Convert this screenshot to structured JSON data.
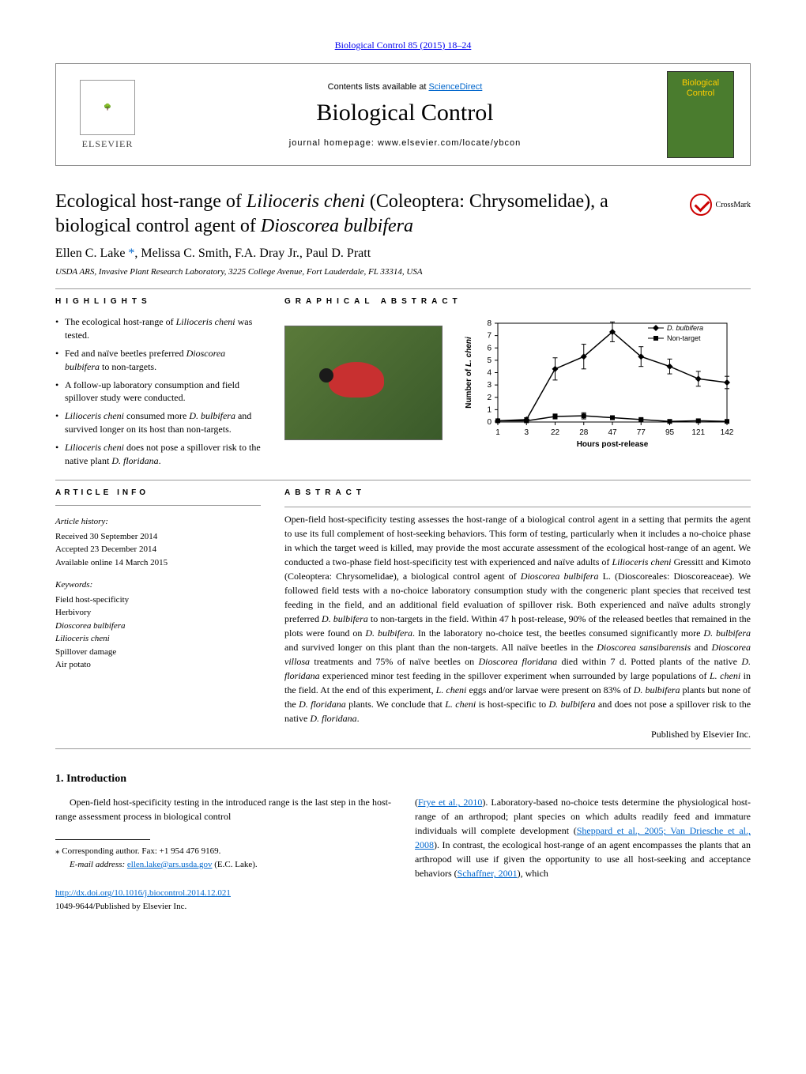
{
  "journal_ref": "Biological Control 85 (2015) 18–24",
  "header": {
    "contents_prefix": "Contents lists available at ",
    "contents_link": "ScienceDirect",
    "journal_name": "Biological Control",
    "homepage_prefix": "journal homepage: ",
    "homepage_url": "www.elsevier.com/locate/ybcon",
    "publisher": "ELSEVIER",
    "cover_line1": "Biological",
    "cover_line2": "Control"
  },
  "title_html": "Ecological host-range of <em>Lilioceris cheni</em> (Coleoptera: Chrysomelidae), a biological control agent of <em>Dioscorea bulbifera</em>",
  "crossmark": "CrossMark",
  "authors_html": "Ellen C. Lake <a href=\"#\">*</a>, Melissa C. Smith, F.A. Dray Jr., Paul D. Pratt",
  "affiliation": "USDA ARS, Invasive Plant Research Laboratory, 3225 College Avenue, Fort Lauderdale, FL 33314, USA",
  "highlights": {
    "label": "HIGHLIGHTS",
    "items": [
      "The ecological host-range of <em>Lilioceris cheni</em> was tested.",
      "Fed and naïve beetles preferred <em>Dioscorea bulbifera</em> to non-targets.",
      "A follow-up laboratory consumption and field spillover study were conducted.",
      "<em>Lilioceris cheni</em> consumed more <em>D. bulbifera</em> and survived longer on its host than non-targets.",
      "<em>Lilioceris cheni</em> does not pose a spillover risk to the native plant <em>D. floridana</em>."
    ]
  },
  "graphical_abstract": {
    "label": "GRAPHICAL ABSTRACT",
    "chart": {
      "type": "line",
      "x_categories": [
        "1",
        "3",
        "22",
        "28",
        "47",
        "77",
        "95",
        "121",
        "142"
      ],
      "ylabel": "Number of L. cheni",
      "xlabel": "Hours post-release",
      "ylim": [
        0,
        8
      ],
      "ytick_step": 1,
      "series": [
        {
          "name": "D. bulbifera",
          "color": "#000000",
          "marker": "diamond",
          "values": [
            0.1,
            0.2,
            4.3,
            5.3,
            7.3,
            5.3,
            4.5,
            3.5,
            3.2
          ]
        },
        {
          "name": "Non-target",
          "color": "#000000",
          "marker": "square",
          "values": [
            0.1,
            0.1,
            0.45,
            0.5,
            0.35,
            0.2,
            0.05,
            0.1,
            0.05
          ]
        }
      ],
      "error_bars": [
        [
          0.1,
          0.15,
          0.9,
          1.0,
          0.8,
          0.8,
          0.6,
          0.6,
          0.5
        ],
        [
          0.05,
          0.05,
          0.2,
          0.25,
          0.15,
          0.1,
          0.05,
          0.05,
          0.05
        ]
      ],
      "background_color": "#ffffff",
      "axis_color": "#000000",
      "font_size": 10
    }
  },
  "article_info": {
    "label": "ARTICLE INFO",
    "history_label": "Article history:",
    "received": "Received 30 September 2014",
    "accepted": "Accepted 23 December 2014",
    "online": "Available online 14 March 2015",
    "keywords_label": "Keywords:",
    "keywords": [
      "Field host-specificity",
      "Herbivory",
      "Dioscorea bulbifera",
      "Lilioceris cheni",
      "Spillover damage",
      "Air potato"
    ]
  },
  "abstract": {
    "label": "ABSTRACT",
    "text_html": "Open-field host-specificity testing assesses the host-range of a biological control agent in a setting that permits the agent to use its full complement of host-seeking behaviors. This form of testing, particularly when it includes a no-choice phase in which the target weed is killed, may provide the most accurate assessment of the ecological host-range of an agent. We conducted a two-phase field host-specificity test with experienced and naïve adults of <em>Lilioceris cheni</em> Gressitt and Kimoto (Coleoptera: Chrysomelidae), a biological control agent of <em>Dioscorea bulbifera</em> L. (Dioscoreales: Dioscoreaceae). We followed field tests with a no-choice laboratory consumption study with the congeneric plant species that received test feeding in the field, and an additional field evaluation of spillover risk. Both experienced and naïve adults strongly preferred <em>D. bulbifera</em> to non-targets in the field. Within 47 h post-release, 90% of the released beetles that remained in the plots were found on <em>D. bulbifera</em>. In the laboratory no-choice test, the beetles consumed significantly more <em>D. bulbifera</em> and survived longer on this plant than the non-targets. All naïve beetles in the <em>Dioscorea sansibarensis</em> and <em>Dioscorea villosa</em> treatments and 75% of naïve beetles on <em>Dioscorea floridana</em> died within 7 d. Potted plants of the native <em>D. floridana</em> experienced minor test feeding in the spillover experiment when surrounded by large populations of <em>L. cheni</em> in the field. At the end of this experiment, <em>L. cheni</em> eggs and/or larvae were present on 83% of <em>D. bulbifera</em> plants but none of the <em>D. floridana</em> plants. We conclude that <em>L. cheni</em> is host-specific to <em>D. bulbifera</em> and does not pose a spillover risk to the native <em>D. floridana</em>.",
    "published": "Published by Elsevier Inc."
  },
  "intro": {
    "heading": "1. Introduction",
    "col1_html": "Open-field host-specificity testing in the introduced range is the last step in the host-range assessment process in biological control",
    "col2_html": "(<a href=\"#\">Frye et al., 2010</a>). Laboratory-based no-choice tests determine the physiological host-range of an arthropod; plant species on which adults readily feed and immature individuals will complete development (<a href=\"#\">Sheppard et al., 2005; Van Driesche et al., 2008</a>). In contrast, the ecological host-range of an agent encompasses the plants that an arthropod will use if given the opportunity to use all host-seeking and acceptance behaviors (<a href=\"#\">Schaffner, 2001</a>), which"
  },
  "footnotes": {
    "corresponding": "⁎ Corresponding author. Fax: +1 954 476 9169.",
    "email_label": "E-mail address: ",
    "email": "ellen.lake@ars.usda.gov",
    "email_suffix": " (E.C. Lake)."
  },
  "doi": {
    "url": "http://dx.doi.org/10.1016/j.biocontrol.2014.12.021",
    "issn": "1049-9644/Published by Elsevier Inc."
  }
}
